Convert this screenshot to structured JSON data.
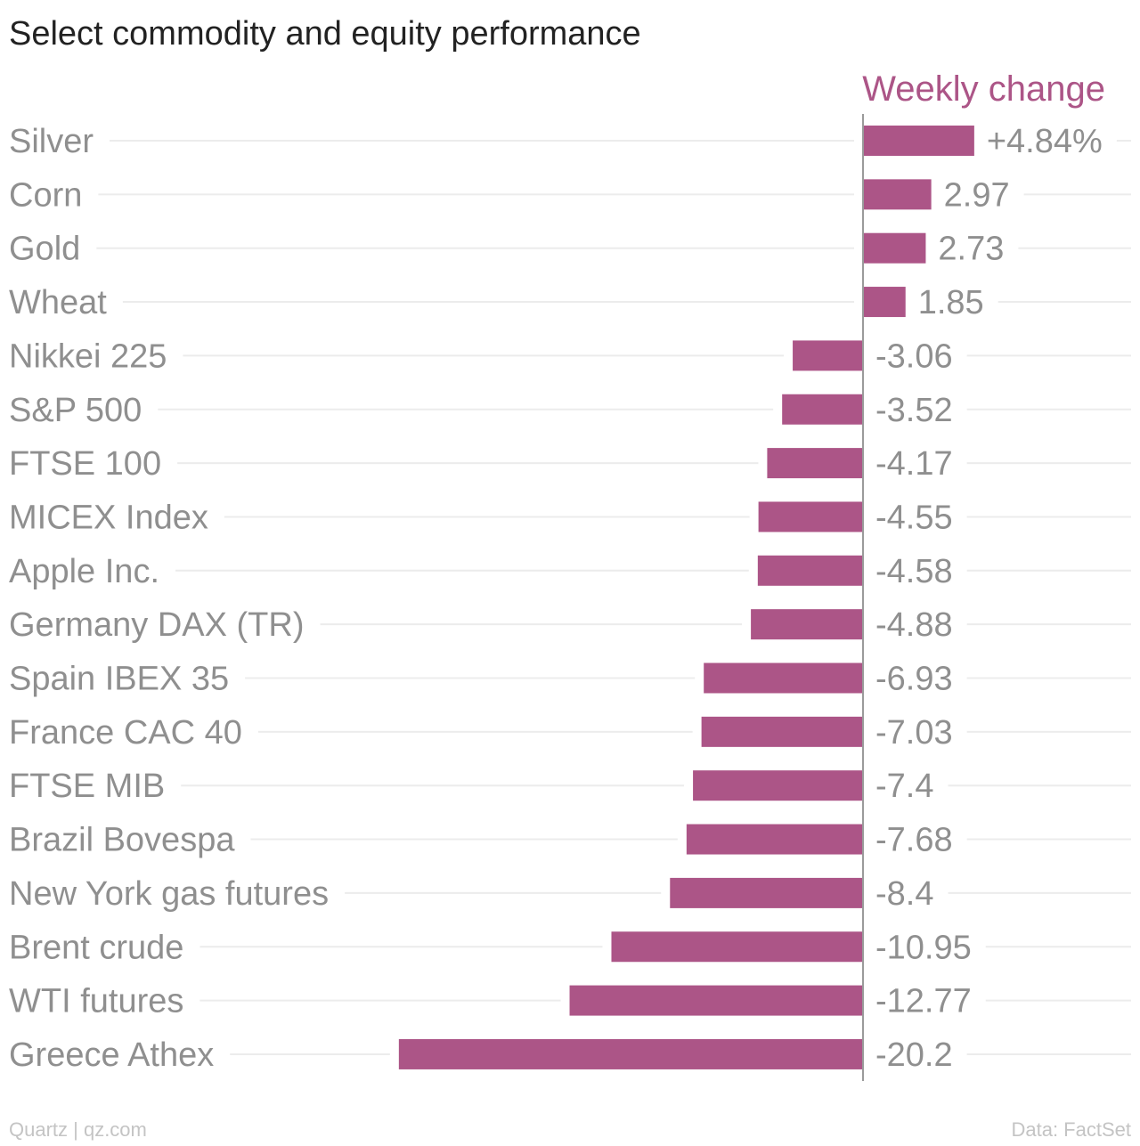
{
  "chart_data": {
    "type": "bar",
    "orientation": "horizontal",
    "title": "Select commodity and equity performance",
    "series": [
      {
        "name": "Weekly change",
        "values": [
          4.84,
          2.97,
          2.73,
          1.85,
          -3.06,
          -3.52,
          -4.17,
          -4.55,
          -4.58,
          -4.88,
          -6.93,
          -7.03,
          -7.4,
          -7.68,
          -8.4,
          -10.95,
          -12.77,
          -20.2
        ],
        "labels": [
          "+4.84%",
          "2.97",
          "2.73",
          "1.85",
          "-3.06",
          "-3.52",
          "-4.17",
          "-4.55",
          "-4.58",
          "-4.88",
          "-6.93",
          "-7.03",
          "-7.4",
          "-7.68",
          "-8.4",
          "-10.95",
          "-12.77",
          "-20.2"
        ]
      }
    ],
    "categories": [
      "Silver",
      "Corn",
      "Gold",
      "Wheat",
      "Nikkei 225",
      "S&P 500",
      "FTSE 100",
      "MICEX Index",
      "Apple Inc.",
      "Germany DAX (TR)",
      "Spain IBEX 35",
      "France CAC 40",
      "FTSE MIB",
      "Brazil Bovespa",
      "New York gas futures",
      "Brent crude",
      "WTI futures",
      "Greece Athex"
    ],
    "xlim": [
      -33,
      12
    ],
    "grid": true,
    "legend": "none",
    "colors": {
      "bar": "#ac5587",
      "series_label": "#ac5587",
      "title": "#222222",
      "label": "#8f8f8f",
      "grid": "#ececec",
      "axis": "#9a9a9a"
    }
  },
  "footer": {
    "source_left": "Quartz | qz.com",
    "source_right": "Data: FactSet"
  }
}
